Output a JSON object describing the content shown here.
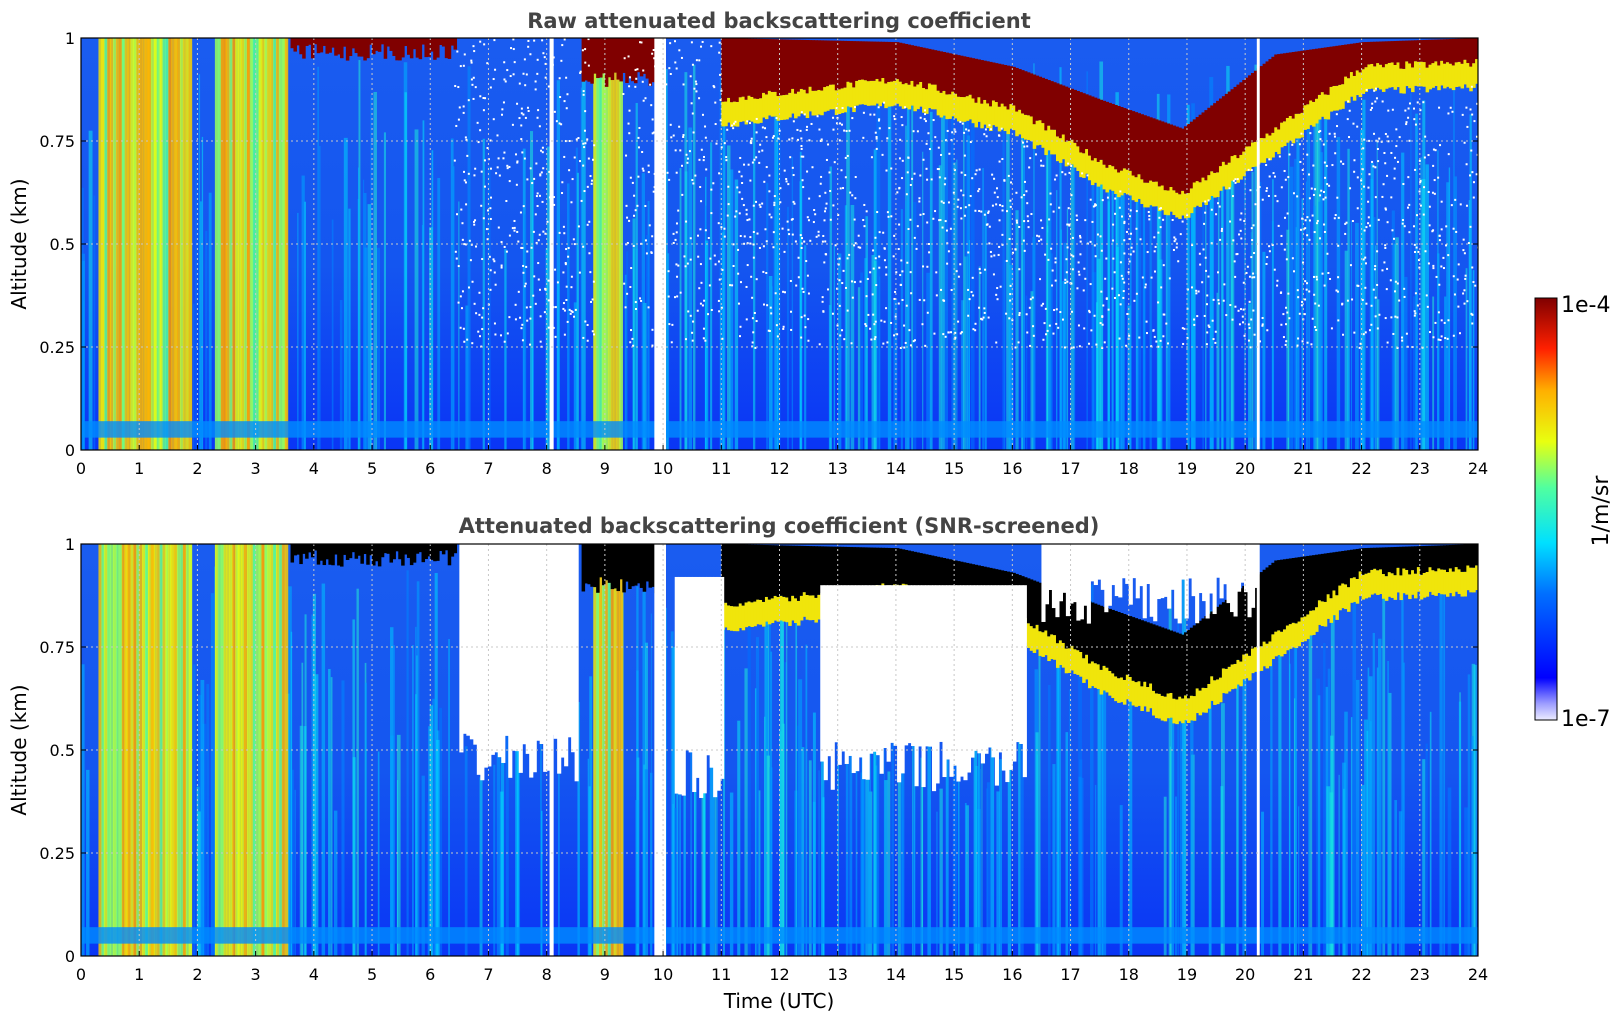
{
  "chart_data": [
    {
      "type": "heatmap",
      "title": "Raw attenuated backscattering coefficient",
      "xlabel": "",
      "ylabel": "Altitude (km)",
      "xlim": [
        0,
        24
      ],
      "ylim": [
        0,
        1
      ],
      "x_ticks": [
        "0",
        "1",
        "2",
        "3",
        "4",
        "5",
        "6",
        "7",
        "8",
        "9",
        "10",
        "11",
        "12",
        "13",
        "14",
        "15",
        "16",
        "17",
        "18",
        "19",
        "20",
        "21",
        "22",
        "23",
        "24"
      ],
      "y_ticks": [
        "0",
        "0.25",
        "0.5",
        "0.75",
        "1"
      ],
      "grid": true,
      "color_scale": "jet",
      "value_range": [
        "1e-7",
        "1e-4"
      ],
      "features": {
        "cloud_layer_top_km": [
          {
            "time": 11.0,
            "top": 1.0,
            "base": 0.85
          },
          {
            "time": 14.0,
            "top": 0.99,
            "base": 0.9
          },
          {
            "time": 16.0,
            "top": 0.93,
            "base": 0.83
          },
          {
            "time": 17.5,
            "top": 0.85,
            "base": 0.7
          },
          {
            "time": 18.9,
            "top": 0.78,
            "base": 0.62
          },
          {
            "time": 20.5,
            "top": 0.96,
            "base": 0.78
          },
          {
            "time": 22.0,
            "top": 0.99,
            "base": 0.93
          },
          {
            "time": 24.0,
            "top": 1.0,
            "base": 0.94
          }
        ],
        "high_signal_bands_utc": [
          [
            0.3,
            1.9
          ],
          [
            2.3,
            3.5
          ],
          [
            8.8,
            9.3
          ]
        ],
        "missing_data_utc": [
          [
            8.05,
            8.12
          ],
          [
            9.85,
            10.05
          ],
          [
            20.2,
            20.25
          ]
        ]
      }
    },
    {
      "type": "heatmap",
      "title": "Attenuated backscattering coefficient (SNR-screened)",
      "xlabel": "Time (UTC)",
      "ylabel": "Altitude (km)",
      "xlim": [
        0,
        24
      ],
      "ylim": [
        0,
        1
      ],
      "x_ticks": [
        "0",
        "1",
        "2",
        "3",
        "4",
        "5",
        "6",
        "7",
        "8",
        "9",
        "10",
        "11",
        "12",
        "13",
        "14",
        "15",
        "16",
        "17",
        "18",
        "19",
        "20",
        "21",
        "22",
        "23",
        "24"
      ],
      "y_ticks": [
        "0",
        "0.25",
        "0.5",
        "0.75",
        "1"
      ],
      "grid": true,
      "color_scale": "jet",
      "value_range": [
        "1e-7",
        "1e-4"
      ],
      "features": {
        "screened_regions_utc_km": [
          {
            "t0": 6.5,
            "t1": 8.5,
            "bottom": 0.42,
            "top": 1.0
          },
          {
            "t0": 10.2,
            "t1": 11.0,
            "bottom": 0.38,
            "top": 0.92
          },
          {
            "t0": 12.7,
            "t1": 16.2,
            "bottom": 0.4,
            "top": 0.9
          },
          {
            "t0": 16.5,
            "t1": 20.2,
            "bottom": 0.8,
            "top": 1.0
          }
        ],
        "saturated_cloud_color": "#000000"
      }
    }
  ],
  "colorbar": {
    "label": "1/m/sr",
    "max_label": "1e-4",
    "min_label": "1e-7"
  }
}
